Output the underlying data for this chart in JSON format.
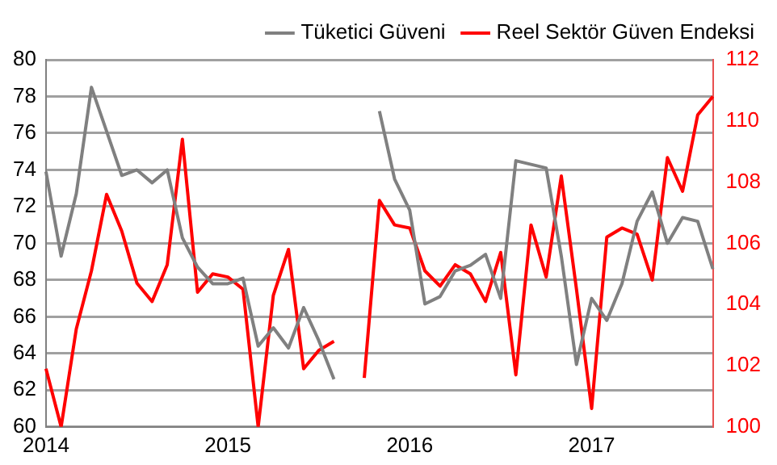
{
  "chart_data": {
    "type": "line",
    "categories": [
      "2014",
      null,
      null,
      null,
      null,
      null,
      null,
      null,
      null,
      null,
      null,
      null,
      "2015",
      null,
      null,
      null,
      null,
      null,
      null,
      null,
      null,
      null,
      null,
      null,
      "2016",
      null,
      null,
      null,
      null,
      null,
      null,
      null,
      null,
      null,
      null,
      null,
      "2017",
      null,
      null,
      null,
      null,
      null,
      null,
      null,
      null
    ],
    "series": [
      {
        "name": "Tüketici Güveni",
        "color": "#808080",
        "values": [
          73.9,
          69.3,
          72.7,
          78.5,
          76.1,
          73.7,
          74.0,
          73.3,
          74.0,
          70.3,
          68.7,
          67.8,
          67.8,
          68.1,
          64.4,
          65.4,
          64.3,
          66.5,
          64.7,
          62.6,
          null,
          null,
          77.2,
          73.5,
          71.8,
          66.7,
          67.1,
          68.5,
          68.8,
          69.4,
          67.0,
          74.5,
          74.3,
          74.1,
          69.3,
          63.4,
          67.0,
          65.8,
          67.8,
          71.2,
          72.8,
          70.0,
          71.4,
          71.2,
          68.6
        ]
      },
      {
        "name": "Reel Sektör Güven Endeksi",
        "color": "#ff0000",
        "axis": "y2",
        "values": [
          101.9,
          100.0,
          103.2,
          105.1,
          107.6,
          106.4,
          104.7,
          104.1,
          105.3,
          109.4,
          104.4,
          105.0,
          104.9,
          104.5,
          100.0,
          104.3,
          105.8,
          101.9,
          102.5,
          102.8,
          null,
          101.6,
          107.4,
          106.6,
          106.5,
          105.1,
          104.6,
          105.3,
          105.0,
          104.1,
          105.7,
          101.7,
          106.6,
          104.9,
          108.2,
          104.5,
          100.6,
          106.2,
          106.5,
          106.3,
          104.8,
          108.8,
          107.7,
          110.2,
          110.8
        ]
      }
    ],
    "ylim": [
      60,
      80
    ],
    "yticks": [
      60,
      62,
      64,
      66,
      68,
      70,
      72,
      74,
      76,
      78,
      80
    ],
    "y2lim": [
      100,
      112
    ],
    "y2ticks": [
      100,
      102,
      104,
      106,
      108,
      110,
      112
    ],
    "grid": "y",
    "legend": "top",
    "marker": "none",
    "line_style": "solid"
  }
}
